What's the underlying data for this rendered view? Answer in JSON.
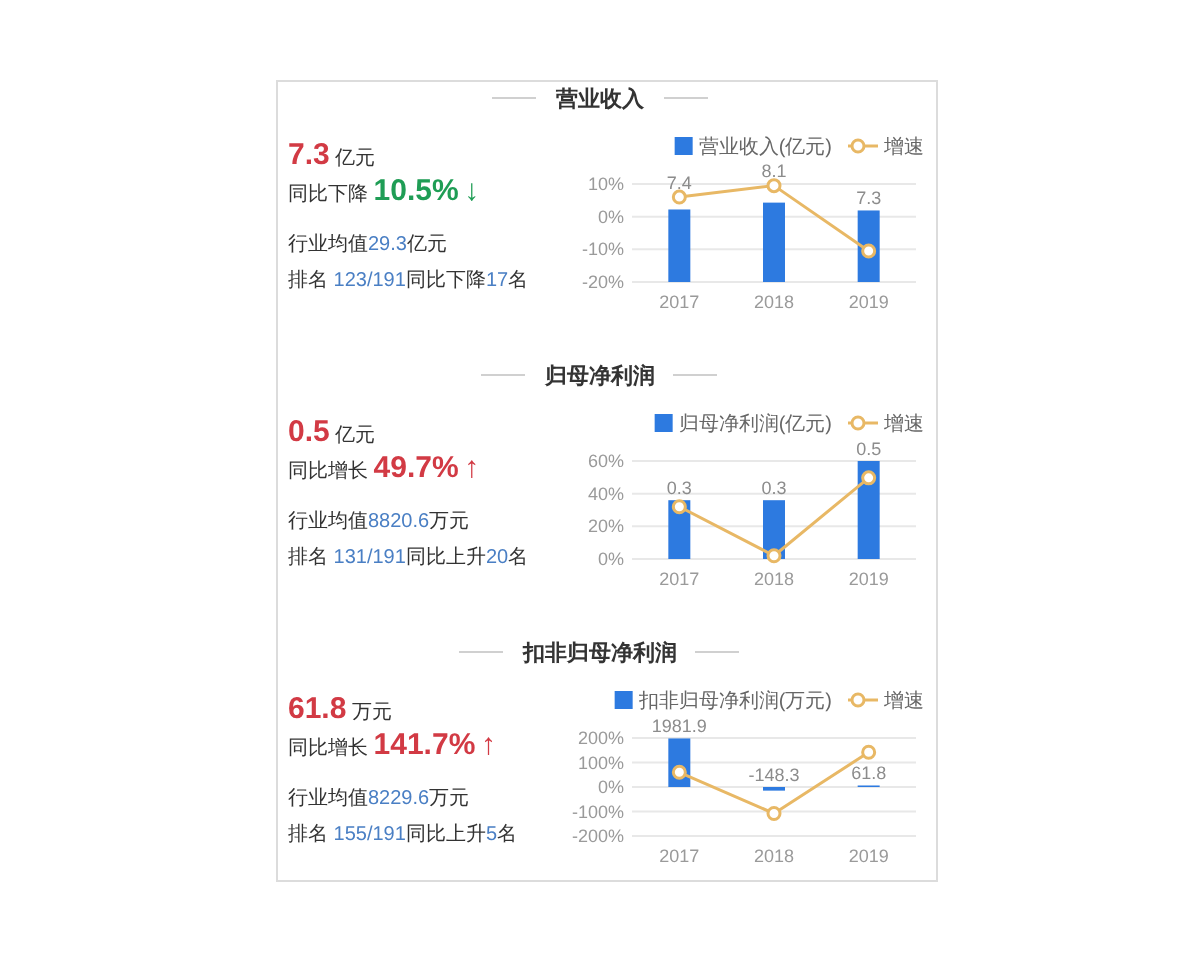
{
  "chart_data": [
    {
      "type": "other",
      "title": "营业收入",
      "annotations": [
        "7.3 亿元",
        "同比下降 10.5% ↓",
        "行业均值29.3亿元",
        "排名 123/191同比下降17名"
      ],
      "colors": [
        "#d23a44",
        "#1f9d55",
        "#4a7fc4",
        "#4a7fc4"
      ]
    },
    {
      "type": "bar",
      "categories": [
        "2017",
        "2018",
        "2019"
      ],
      "series": [
        {
          "name": "营业收入(亿元)",
          "type": "bar",
          "axis": "y2",
          "color": "#2d7ae0",
          "values": [
            7.4,
            8.1,
            7.3
          ],
          "value_labels": [
            "7.4",
            "8.1",
            "7.3"
          ]
        },
        {
          "name": "增速",
          "type": "line",
          "color": "#e8b865",
          "values": [
            6,
            9.5,
            -10.5
          ]
        }
      ],
      "ylim": [
        -20,
        10
      ],
      "yticks": [
        {
          "value": -20,
          "label": "-20%"
        },
        {
          "value": -10,
          "label": "-10%"
        },
        {
          "value": 0,
          "label": "0%"
        },
        {
          "value": 10,
          "label": "10%"
        }
      ],
      "y2lim": [
        0,
        10
      ],
      "grid": "y",
      "legend": "top right",
      "marker": "circle"
    },
    {
      "type": "other",
      "title": "归母净利润",
      "annotations": [
        "0.5 亿元",
        "同比增长 49.7% ↑",
        "行业均值8820.6万元",
        "排名 131/191同比上升20名"
      ],
      "colors": [
        "#d23a44",
        "#d23a44",
        "#4a7fc4",
        "#4a7fc4"
      ]
    },
    {
      "type": "bar",
      "categories": [
        "2017",
        "2018",
        "2019"
      ],
      "series": [
        {
          "name": "归母净利润(亿元)",
          "type": "bar",
          "axis": "y2",
          "color": "#2d7ae0",
          "values": [
            0.3,
            0.3,
            0.5
          ],
          "value_labels": [
            "0.3",
            "0.3",
            "0.5"
          ]
        },
        {
          "name": "增速",
          "type": "line",
          "color": "#e8b865",
          "values": [
            32,
            2,
            49.7
          ]
        }
      ],
      "ylim": [
        0,
        60
      ],
      "yticks": [
        {
          "value": 0,
          "label": "0%"
        },
        {
          "value": 20,
          "label": "20%"
        },
        {
          "value": 40,
          "label": "40%"
        },
        {
          "value": 60,
          "label": "60%"
        }
      ],
      "y2lim": [
        0,
        0.5
      ],
      "grid": "y",
      "legend": "top right",
      "marker": "circle"
    },
    {
      "type": "other",
      "title": "扣非归母净利润",
      "annotations": [
        "61.8 万元",
        "同比增长 141.7% ↑",
        "行业均值8229.6万元",
        "排名 155/191同比上升5名"
      ],
      "colors": [
        "#d23a44",
        "#d23a44",
        "#4a7fc4",
        "#4a7fc4"
      ]
    },
    {
      "type": "bar",
      "categories": [
        "2017",
        "2018",
        "2019"
      ],
      "series": [
        {
          "name": "扣非归母净利润(万元)",
          "type": "bar",
          "axis": "y2",
          "color": "#2d7ae0",
          "values": [
            1981.9,
            -148.3,
            61.8
          ],
          "value_labels": [
            "1981.9",
            "-148.3",
            "61.8"
          ]
        },
        {
          "name": "增速",
          "type": "line",
          "color": "#e8b865",
          "values": [
            60,
            -108,
            141.7
          ]
        }
      ],
      "ylim": [
        -200,
        200
      ],
      "yticks": [
        {
          "value": -200,
          "label": "-200%"
        },
        {
          "value": -100,
          "label": "-100%"
        },
        {
          "value": 0,
          "label": "0%"
        },
        {
          "value": 100,
          "label": "100%"
        },
        {
          "value": 200,
          "label": "200%"
        }
      ],
      "y2lim": [
        -2000,
        2000
      ],
      "grid": "y",
      "legend": "top right",
      "marker": "circle"
    }
  ]
}
